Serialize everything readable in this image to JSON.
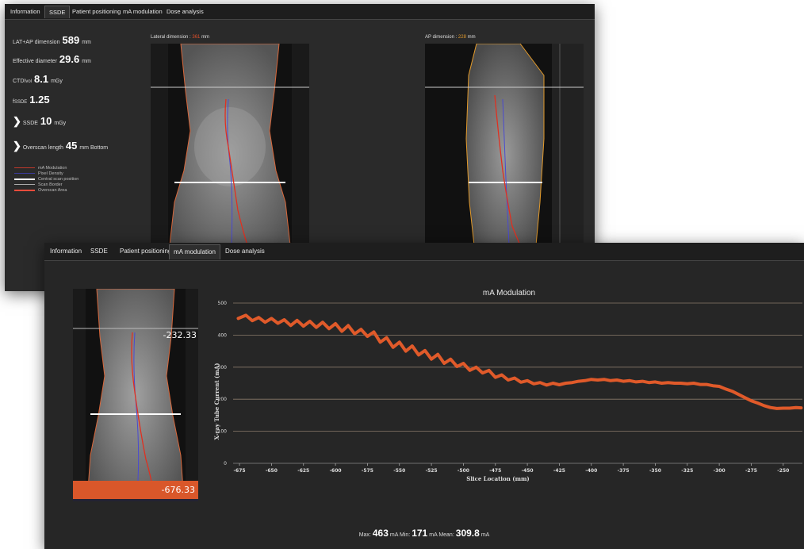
{
  "window_back": {
    "tabs": [
      "Information",
      "SSDE",
      "Patient positioning",
      "mA modulation",
      "Dose analysis"
    ],
    "active_tab": "SSDE",
    "stats": {
      "lat_ap_label": "LAT+AP dimension",
      "lat_ap_value": "589",
      "lat_ap_unit": "mm",
      "eff_label": "Effective diameter",
      "eff_value": "29.6",
      "eff_unit": "mm",
      "ctdi_label": "CTDI",
      "ctdi_sub": "vol",
      "ctdi_value": "8.1",
      "ctdi_unit": "mGy",
      "f_label": "f",
      "f_sub": "SSDE",
      "f_value": "1.25",
      "ssde_label": "SSDE",
      "ssde_value": "10",
      "ssde_unit": "mGy",
      "overscan_label": "Overscan length",
      "overscan_value": "45",
      "overscan_unit": "mm",
      "overscan_pos": "Bottom"
    },
    "legend": [
      {
        "label": "mA Modulation",
        "color": "#c0392b"
      },
      {
        "label": "Pixel Density",
        "color": "#3a3a9a"
      },
      {
        "label": "Central scan position",
        "color": "#ffffff"
      },
      {
        "label": "Scan Border",
        "color": "#aaaaaa"
      },
      {
        "label": "Overscan Area",
        "color": "#e74c3c"
      }
    ],
    "lateral_label": "Lateral dimension :",
    "lateral_value": "361",
    "lateral_unit": "mm",
    "ap_label": "AP dimension :",
    "ap_value": "228",
    "ap_unit": "mm"
  },
  "window_front": {
    "tabs": [
      "Information",
      "SSDE",
      "Patient positioning",
      "mA modulation",
      "Dose analysis"
    ],
    "active_tab": "mA modulation",
    "scan_top": "-232.33",
    "scan_bottom": "-676.33",
    "footer": {
      "max_label": "Max:",
      "max_value": "463",
      "max_unit": "mA",
      "min_label": "Min:",
      "min_value": "171",
      "min_unit": "mA",
      "mean_label": "Mean:",
      "mean_value": "309.8",
      "mean_unit": "mA"
    }
  },
  "chart_data": {
    "type": "line",
    "title": "mA Modulation",
    "xlabel": "Slice Location (mm)",
    "ylabel": "X-ray Tube Current (mA)",
    "xlim": [
      -680,
      -235
    ],
    "ylim": [
      0,
      500
    ],
    "x_ticks": [
      -675,
      -650,
      -625,
      -600,
      -575,
      -550,
      -525,
      -500,
      -475,
      -450,
      -425,
      -400,
      -375,
      -350,
      -325,
      -300,
      -275,
      -250
    ],
    "y_ticks": [
      0,
      100,
      200,
      300,
      400,
      500
    ],
    "series_color": "#e05a2a",
    "series": [
      {
        "x": [
          -676,
          -670,
          -665,
          -660,
          -655,
          -650,
          -645,
          -640,
          -635,
          -630,
          -625,
          -620,
          -615,
          -610,
          -605,
          -600,
          -595,
          -590,
          -585,
          -580,
          -575,
          -570,
          -565,
          -560,
          -555,
          -550,
          -545,
          -540,
          -535,
          -530,
          -525,
          -520,
          -515,
          -510,
          -505,
          -500,
          -495,
          -490,
          -485,
          -480,
          -475,
          -470,
          -465,
          -460,
          -455,
          -450,
          -445,
          -440,
          -435,
          -430,
          -425,
          -420,
          -415,
          -410,
          -405,
          -400,
          -395,
          -390,
          -385,
          -380,
          -375,
          -370,
          -365,
          -360,
          -355,
          -350,
          -345,
          -340,
          -335,
          -330,
          -325,
          -320,
          -315,
          -310,
          -305,
          -300,
          -295,
          -290,
          -285,
          -280,
          -275,
          -270,
          -265,
          -260,
          -255,
          -250,
          -245,
          -240,
          -236
        ],
        "y": [
          452,
          462,
          445,
          455,
          440,
          452,
          437,
          448,
          430,
          446,
          428,
          443,
          424,
          440,
          420,
          436,
          412,
          430,
          404,
          418,
          396,
          410,
          378,
          392,
          362,
          378,
          350,
          366,
          338,
          352,
          325,
          340,
          312,
          325,
          302,
          312,
          290,
          300,
          282,
          290,
          268,
          276,
          260,
          266,
          253,
          258,
          248,
          252,
          244,
          250,
          245,
          250,
          252,
          256,
          258,
          262,
          260,
          262,
          258,
          260,
          256,
          258,
          254,
          256,
          252,
          254,
          250,
          252,
          250,
          250,
          248,
          250,
          246,
          246,
          242,
          240,
          232,
          225,
          215,
          205,
          195,
          188,
          180,
          174,
          171,
          172,
          172,
          174,
          173
        ]
      }
    ]
  }
}
